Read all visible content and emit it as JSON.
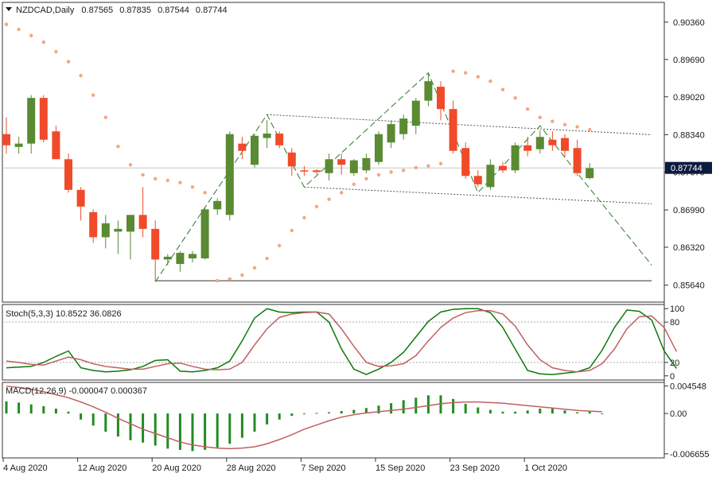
{
  "header": {
    "symbol": "NZDCAD,Daily",
    "open": "0.87565",
    "high": "0.87835",
    "low": "0.87544",
    "close": "0.87744"
  },
  "current_price_label": "0.87744",
  "colors": {
    "bull": "#5a8a32",
    "bear": "#f04a2a",
    "sar": "#f4a582",
    "stoch_main": "#0a7a0a",
    "stoch_signal": "#c06060",
    "macd_hist": "#228b22",
    "macd_signal": "#c06060",
    "axis": "#5a6a8a",
    "current_label_bg": "#0d1a40"
  },
  "chart_data": [
    {
      "type": "candlestick",
      "panel": "price",
      "y_ticks": [
        "0.90360",
        "0.89690",
        "0.89020",
        "0.88340",
        "0.87670",
        "0.86990",
        "0.86320",
        "0.85640"
      ],
      "ylim": [
        0.8535,
        0.907
      ],
      "x_ticks": [
        {
          "index": 0,
          "label": "4 Aug 2020"
        },
        {
          "index": 6,
          "label": "12 Aug 2020"
        },
        {
          "index": 12,
          "label": "20 Aug 2020"
        },
        {
          "index": 18,
          "label": "28 Aug 2020"
        },
        {
          "index": 24,
          "label": "7 Sep 2020"
        },
        {
          "index": 30,
          "label": "15 Sep 2020"
        },
        {
          "index": 36,
          "label": "23 Sep 2020"
        },
        {
          "index": 42,
          "label": "1 Oct 2020"
        }
      ],
      "candles": [
        {
          "o": 0.8835,
          "h": 0.8865,
          "l": 0.88,
          "c": 0.8815
        },
        {
          "o": 0.8812,
          "h": 0.883,
          "l": 0.88,
          "c": 0.8818
        },
        {
          "o": 0.8818,
          "h": 0.8905,
          "l": 0.88,
          "c": 0.89
        },
        {
          "o": 0.89,
          "h": 0.8905,
          "l": 0.882,
          "c": 0.8825
        },
        {
          "o": 0.884,
          "h": 0.885,
          "l": 0.879,
          "c": 0.879
        },
        {
          "o": 0.879,
          "h": 0.88,
          "l": 0.873,
          "c": 0.8735
        },
        {
          "o": 0.8735,
          "h": 0.874,
          "l": 0.868,
          "c": 0.8705
        },
        {
          "o": 0.8695,
          "h": 0.87,
          "l": 0.864,
          "c": 0.865
        },
        {
          "o": 0.865,
          "h": 0.869,
          "l": 0.863,
          "c": 0.8675
        },
        {
          "o": 0.866,
          "h": 0.868,
          "l": 0.862,
          "c": 0.8665
        },
        {
          "o": 0.866,
          "h": 0.869,
          "l": 0.861,
          "c": 0.869
        },
        {
          "o": 0.869,
          "h": 0.874,
          "l": 0.865,
          "c": 0.8665
        },
        {
          "o": 0.8665,
          "h": 0.868,
          "l": 0.857,
          "c": 0.861
        },
        {
          "o": 0.861,
          "h": 0.862,
          "l": 0.86,
          "c": 0.8615
        },
        {
          "o": 0.8602,
          "h": 0.8625,
          "l": 0.8588,
          "c": 0.8622
        },
        {
          "o": 0.8612,
          "h": 0.8625,
          "l": 0.8605,
          "c": 0.862
        },
        {
          "o": 0.8612,
          "h": 0.8705,
          "l": 0.861,
          "c": 0.87
        },
        {
          "o": 0.87,
          "h": 0.872,
          "l": 0.869,
          "c": 0.8715
        },
        {
          "o": 0.869,
          "h": 0.884,
          "l": 0.868,
          "c": 0.8835
        },
        {
          "o": 0.8818,
          "h": 0.883,
          "l": 0.879,
          "c": 0.8805
        },
        {
          "o": 0.878,
          "h": 0.8835,
          "l": 0.8775,
          "c": 0.8832
        },
        {
          "o": 0.8828,
          "h": 0.886,
          "l": 0.881,
          "c": 0.8836
        },
        {
          "o": 0.8836,
          "h": 0.884,
          "l": 0.881,
          "c": 0.8815
        },
        {
          "o": 0.8802,
          "h": 0.881,
          "l": 0.876,
          "c": 0.8777
        },
        {
          "o": 0.877,
          "h": 0.8778,
          "l": 0.876,
          "c": 0.8768
        },
        {
          "o": 0.877,
          "h": 0.8772,
          "l": 0.8763,
          "c": 0.8767
        },
        {
          "o": 0.8765,
          "h": 0.88,
          "l": 0.8752,
          "c": 0.879
        },
        {
          "o": 0.879,
          "h": 0.88,
          "l": 0.8762,
          "c": 0.878
        },
        {
          "o": 0.8765,
          "h": 0.879,
          "l": 0.876,
          "c": 0.8788
        },
        {
          "o": 0.877,
          "h": 0.88,
          "l": 0.8765,
          "c": 0.8792
        },
        {
          "o": 0.8785,
          "h": 0.884,
          "l": 0.878,
          "c": 0.8835
        },
        {
          "o": 0.882,
          "h": 0.886,
          "l": 0.881,
          "c": 0.8853
        },
        {
          "o": 0.8835,
          "h": 0.887,
          "l": 0.8825,
          "c": 0.8863
        },
        {
          "o": 0.885,
          "h": 0.89,
          "l": 0.8835,
          "c": 0.8895
        },
        {
          "o": 0.8895,
          "h": 0.8945,
          "l": 0.8885,
          "c": 0.893
        },
        {
          "o": 0.892,
          "h": 0.893,
          "l": 0.886,
          "c": 0.888
        },
        {
          "o": 0.888,
          "h": 0.8895,
          "l": 0.88,
          "c": 0.8805
        },
        {
          "o": 0.881,
          "h": 0.882,
          "l": 0.8755,
          "c": 0.876
        },
        {
          "o": 0.876,
          "h": 0.877,
          "l": 0.874,
          "c": 0.8745
        },
        {
          "o": 0.874,
          "h": 0.879,
          "l": 0.8735,
          "c": 0.878
        },
        {
          "o": 0.8778,
          "h": 0.8785,
          "l": 0.8765,
          "c": 0.877
        },
        {
          "o": 0.877,
          "h": 0.882,
          "l": 0.8765,
          "c": 0.8815
        },
        {
          "o": 0.8815,
          "h": 0.883,
          "l": 0.8795,
          "c": 0.8805
        },
        {
          "o": 0.8808,
          "h": 0.8842,
          "l": 0.88,
          "c": 0.883
        },
        {
          "o": 0.8825,
          "h": 0.884,
          "l": 0.8805,
          "c": 0.8815
        },
        {
          "o": 0.8828,
          "h": 0.8835,
          "l": 0.8795,
          "c": 0.8805
        },
        {
          "o": 0.881,
          "h": 0.8825,
          "l": 0.876,
          "c": 0.8765
        },
        {
          "o": 0.8756,
          "h": 0.8783,
          "l": 0.8754,
          "c": 0.8774
        }
      ],
      "sar": [
        [
          0,
          0.9032
        ],
        [
          1,
          0.9023
        ],
        [
          2,
          0.9012
        ],
        [
          3,
          0.9
        ],
        [
          4,
          0.8983
        ],
        [
          5,
          0.8965
        ],
        [
          6,
          0.894
        ],
        [
          7,
          0.8905
        ],
        [
          8,
          0.8865
        ],
        [
          9,
          0.8813
        ],
        [
          10,
          0.878
        ],
        [
          11,
          0.8762
        ],
        [
          12,
          0.8755
        ],
        [
          13,
          0.8752
        ],
        [
          14,
          0.8748
        ],
        [
          15,
          0.874
        ],
        [
          16,
          0.873
        ],
        [
          17,
          0.8572
        ],
        [
          18,
          0.8575
        ],
        [
          19,
          0.8582
        ],
        [
          20,
          0.8595
        ],
        [
          21,
          0.8612
        ],
        [
          22,
          0.8635
        ],
        [
          23,
          0.8662
        ],
        [
          24,
          0.8685
        ],
        [
          25,
          0.8705
        ],
        [
          26,
          0.8718
        ],
        [
          27,
          0.873
        ],
        [
          28,
          0.8745
        ],
        [
          29,
          0.8755
        ],
        [
          30,
          0.8762
        ],
        [
          31,
          0.8767
        ],
        [
          32,
          0.877
        ],
        [
          33,
          0.8775
        ],
        [
          34,
          0.8778
        ],
        [
          35,
          0.8782
        ],
        [
          36,
          0.8948
        ],
        [
          37,
          0.8945
        ],
        [
          38,
          0.8938
        ],
        [
          39,
          0.893
        ],
        [
          40,
          0.8915
        ],
        [
          41,
          0.89
        ],
        [
          42,
          0.888
        ],
        [
          43,
          0.8865
        ],
        [
          44,
          0.8858
        ],
        [
          45,
          0.8852
        ],
        [
          46,
          0.8848
        ],
        [
          47,
          0.8843
        ]
      ],
      "zigzag": [
        [
          12,
          0.857
        ],
        [
          21,
          0.887
        ],
        [
          24,
          0.874
        ],
        [
          34,
          0.8945
        ],
        [
          38,
          0.873
        ],
        [
          43,
          0.885
        ],
        [
          46,
          0.8765
        ],
        [
          52,
          0.86
        ]
      ],
      "channel_upper": [
        [
          21,
          0.887
        ],
        [
          52,
          0.8834
        ]
      ],
      "channel_lower": [
        [
          24,
          0.874
        ],
        [
          52,
          0.871
        ]
      ],
      "support_line": [
        [
          12,
          0.8572
        ],
        [
          52,
          0.8572
        ]
      ],
      "current_price": 0.87744
    },
    {
      "type": "line",
      "panel": "stochastic",
      "title": "Stoch(5,3,3) 10.8522 36.0826",
      "y_ticks": [
        "100",
        "80",
        "20",
        "0"
      ],
      "levels": [
        80,
        20
      ],
      "ylim": [
        -5,
        105
      ],
      "series": [
        {
          "name": "main",
          "values": [
            12,
            13,
            14,
            20,
            29,
            37,
            12,
            8,
            6,
            7,
            9,
            14,
            23,
            24,
            7,
            6,
            8,
            12,
            22,
            52,
            86,
            100,
            95,
            94,
            95,
            95,
            80,
            40,
            10,
            2,
            10,
            20,
            35,
            58,
            81,
            95,
            99,
            100,
            100,
            94,
            72,
            40,
            8,
            3,
            2,
            4,
            6,
            12,
            38,
            72,
            98,
            96,
            83,
            37,
            11
          ]
        },
        {
          "name": "signal",
          "values": [
            22,
            20,
            17,
            16,
            22,
            28,
            24,
            18,
            14,
            12,
            10,
            10,
            14,
            18,
            19,
            14,
            10,
            9,
            10,
            20,
            46,
            70,
            87,
            92,
            94,
            95,
            92,
            70,
            44,
            20,
            14,
            15,
            18,
            30,
            52,
            72,
            86,
            94,
            97,
            97,
            92,
            74,
            46,
            24,
            12,
            8,
            6,
            8,
            18,
            40,
            70,
            88,
            89,
            72,
            36
          ]
        }
      ]
    },
    {
      "type": "bar",
      "panel": "macd",
      "title": "MACD(12,26,9) -0.000047 0.000367",
      "y_ticks": [
        "0.004548",
        "0.00",
        "-0.006655"
      ],
      "ylim": [
        -0.0072,
        0.005
      ],
      "histogram": [
        0.002,
        0.0018,
        0.0015,
        0.0012,
        0.0008,
        0.0003,
        -0.001,
        -0.002,
        -0.003,
        -0.0038,
        -0.0044,
        -0.0048,
        -0.0053,
        -0.0058,
        -0.006,
        -0.0062,
        -0.006,
        -0.0056,
        -0.005,
        -0.004,
        -0.003,
        -0.0018,
        -0.001,
        -0.0004,
        -0.0001,
        0.0001,
        0.0002,
        0.0004,
        0.0006,
        0.0009,
        0.0013,
        0.0017,
        0.0022,
        0.0026,
        0.003,
        0.003,
        0.0024,
        0.0016,
        0.001,
        0.0006,
        0.0003,
        0.0003,
        0.0005,
        0.0008,
        0.0008,
        0.0005,
        0.0002,
        0.0003,
        -0.0001
      ],
      "signal": [
        0.0045,
        0.0043,
        0.004,
        0.0036,
        0.0031,
        0.0026,
        0.0019,
        0.0011,
        0.0002,
        -0.0008,
        -0.0017,
        -0.0026,
        -0.0033,
        -0.004,
        -0.0047,
        -0.0052,
        -0.0055,
        -0.0057,
        -0.0058,
        -0.0057,
        -0.0055,
        -0.005,
        -0.0043,
        -0.0035,
        -0.0026,
        -0.0019,
        -0.0012,
        -0.0006,
        -0.0002,
        0.0001,
        0.0003,
        0.0005,
        0.0007,
        0.001,
        0.0013,
        0.0016,
        0.0018,
        0.0019,
        0.0019,
        0.0018,
        0.0017,
        0.0015,
        0.0013,
        0.0011,
        0.0009,
        0.0007,
        0.0005,
        0.0004,
        0.0003
      ]
    }
  ]
}
